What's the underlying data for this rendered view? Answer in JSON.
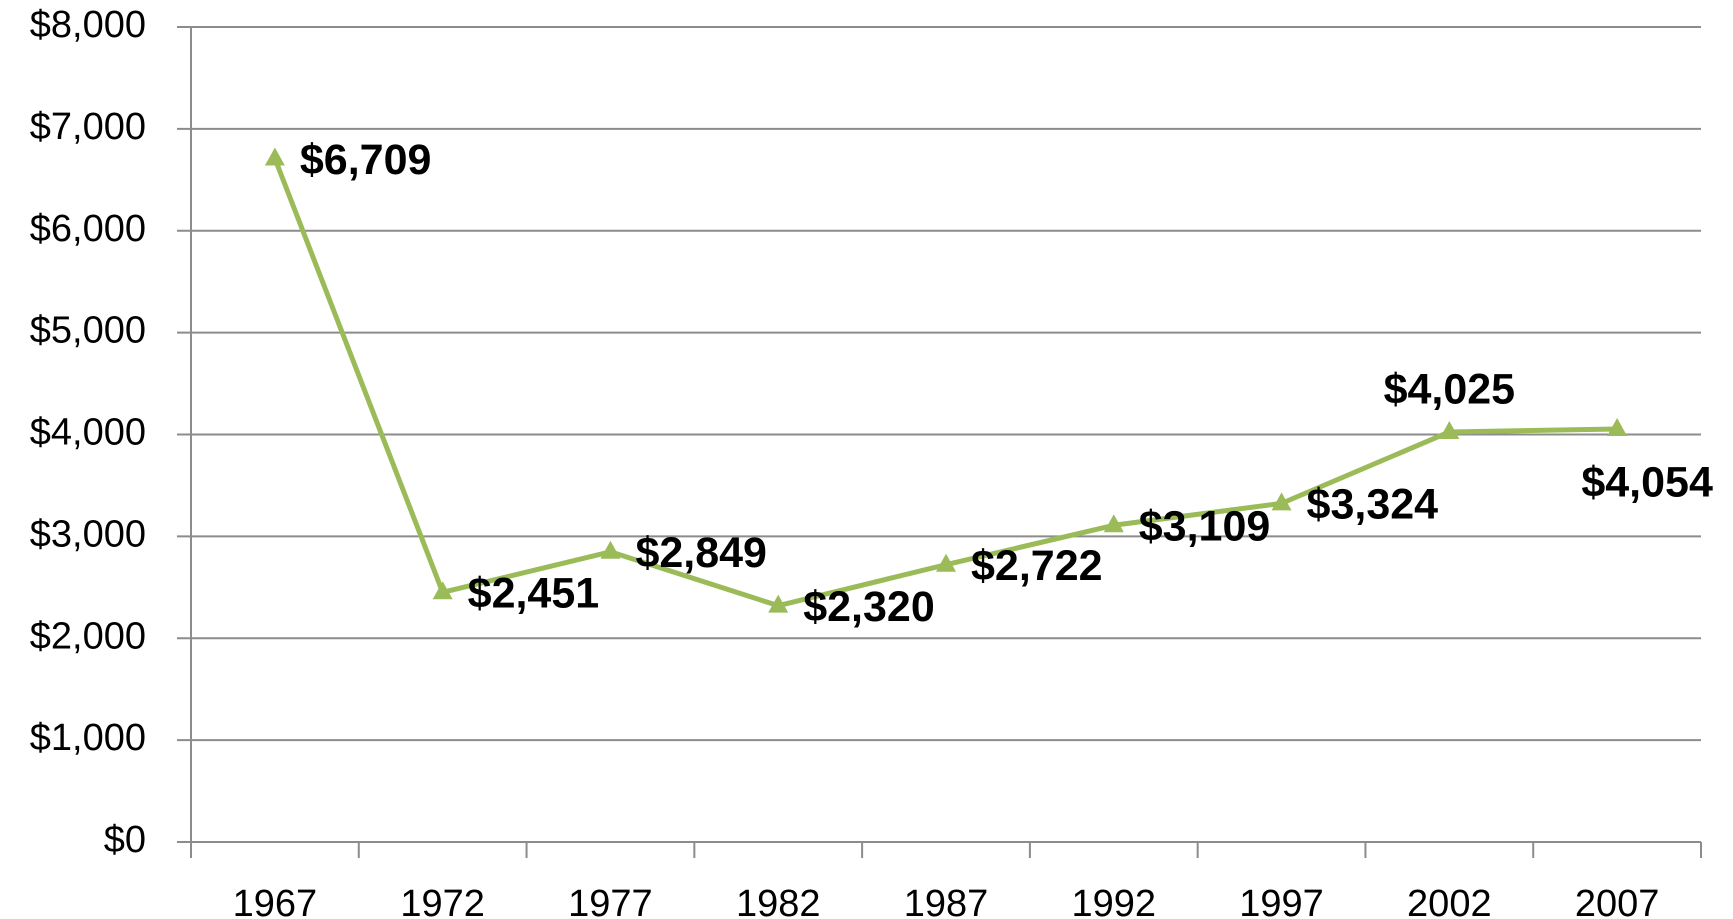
{
  "chart_data": {
    "type": "line",
    "categories": [
      "1967",
      "1972",
      "1977",
      "1982",
      "1987",
      "1992",
      "1997",
      "2002",
      "2007"
    ],
    "values": [
      6709,
      2451,
      2849,
      2320,
      2722,
      3109,
      3324,
      4025,
      4054
    ],
    "value_labels": [
      "$6,709",
      "$2,451",
      "$2,849",
      "$2,320",
      "$2,722",
      "$3,109",
      "$3,324",
      "$4,025",
      "$4,054"
    ],
    "color": "#9bbb59",
    "ylim": [
      0,
      8000
    ],
    "yticks": [
      {
        "value": 0,
        "label": "$0"
      },
      {
        "value": 1000,
        "label": "$1,000"
      },
      {
        "value": 2000,
        "label": "$2,000"
      },
      {
        "value": 3000,
        "label": "$3,000"
      },
      {
        "value": 4000,
        "label": "$4,000"
      },
      {
        "value": 5000,
        "label": "$5,000"
      },
      {
        "value": 6000,
        "label": "$6,000"
      },
      {
        "value": 7000,
        "label": "$7,000"
      },
      {
        "value": 8000,
        "label": "$8,000"
      }
    ],
    "grid": true
  }
}
